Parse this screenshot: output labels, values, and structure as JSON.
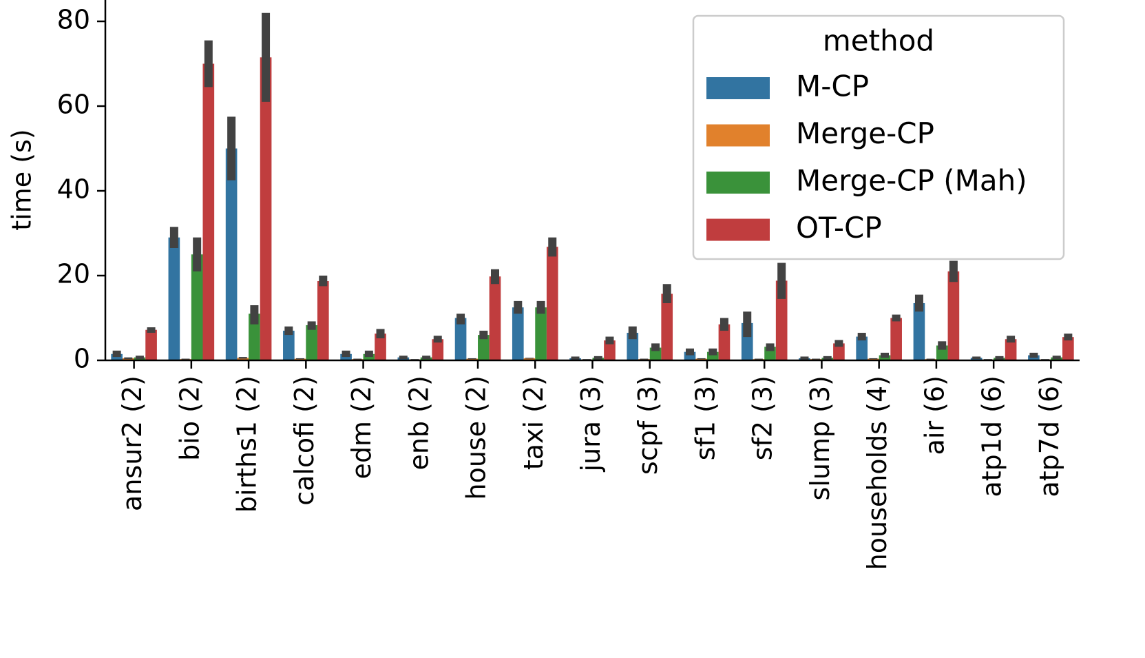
{
  "chart_data": {
    "type": "bar",
    "title": "",
    "xlabel": "",
    "ylabel": "time (s)",
    "ylim": [
      0,
      84
    ],
    "yticks": [
      "0",
      "20",
      "40",
      "60",
      "80"
    ],
    "grid": false,
    "legend": {
      "title": "method",
      "placement": "top-right"
    },
    "categories": [
      "ansur2 (2)",
      "bio (2)",
      "births1 (2)",
      "calcofi (2)",
      "edm (2)",
      "enb (2)",
      "house (2)",
      "taxi (2)",
      "jura (3)",
      "scpf (3)",
      "sf1 (3)",
      "sf2 (3)",
      "slump (3)",
      "households (4)",
      "air (6)",
      "atp1d (6)",
      "atp7d (6)"
    ],
    "series": [
      {
        "name": "M-CP",
        "color": "#3274a1",
        "values": [
          1.5,
          29.0,
          50.0,
          7.0,
          1.5,
          0.7,
          10.0,
          12.5,
          0.5,
          6.5,
          2.0,
          8.8,
          0.5,
          5.6,
          13.5,
          0.6,
          1.2
        ],
        "ci_low": [
          0.8,
          26.5,
          42.5,
          6.0,
          0.8,
          0.3,
          8.5,
          11.0,
          0.2,
          5.0,
          1.2,
          5.5,
          0.2,
          4.7,
          11.5,
          0.3,
          0.6
        ],
        "ci_high": [
          2.3,
          31.5,
          57.5,
          8.0,
          2.3,
          1.1,
          11.0,
          14.0,
          0.9,
          8.0,
          2.8,
          11.5,
          0.9,
          6.5,
          15.5,
          0.9,
          1.8
        ]
      },
      {
        "name": "Merge-CP",
        "color": "#e1812c",
        "values": [
          0.5,
          0.3,
          0.6,
          0.4,
          0.3,
          0.2,
          0.4,
          0.5,
          0.2,
          0.3,
          0.4,
          0.3,
          0.3,
          0.4,
          0.3,
          0.2,
          0.2
        ],
        "ci_low": [
          0.3,
          0.2,
          0.4,
          0.3,
          0.2,
          0.1,
          0.3,
          0.4,
          0.1,
          0.2,
          0.3,
          0.2,
          0.2,
          0.3,
          0.2,
          0.1,
          0.1
        ],
        "ci_high": [
          0.7,
          0.4,
          0.8,
          0.5,
          0.4,
          0.3,
          0.5,
          0.6,
          0.3,
          0.4,
          0.5,
          0.4,
          0.4,
          0.5,
          0.4,
          0.3,
          0.3
        ]
      },
      {
        "name": "Merge-CP (Mah)",
        "color": "#3a923a",
        "values": [
          0.7,
          25.0,
          11.0,
          8.3,
          1.5,
          0.7,
          6.0,
          12.5,
          0.6,
          3.0,
          2.0,
          3.2,
          0.6,
          1.2,
          3.5,
          0.6,
          0.7
        ],
        "ci_low": [
          0.3,
          21.0,
          8.5,
          7.2,
          0.8,
          0.3,
          5.0,
          11.0,
          0.2,
          2.2,
          1.2,
          2.2,
          0.2,
          0.6,
          2.5,
          0.2,
          0.3
        ],
        "ci_high": [
          1.1,
          29.0,
          13.0,
          9.2,
          2.3,
          1.1,
          7.0,
          14.0,
          1.0,
          4.0,
          2.8,
          4.0,
          1.0,
          1.8,
          4.5,
          1.0,
          1.1
        ]
      },
      {
        "name": "OT-CP",
        "color": "#c03d3e",
        "values": [
          7.2,
          70.0,
          71.5,
          18.7,
          6.3,
          5.0,
          19.8,
          26.8,
          4.7,
          15.7,
          8.5,
          18.8,
          4.0,
          10.0,
          21.0,
          5.0,
          5.5
        ],
        "ci_low": [
          6.5,
          64.5,
          61.0,
          17.5,
          5.2,
          4.2,
          18.0,
          24.5,
          3.8,
          13.5,
          7.0,
          14.5,
          3.2,
          9.2,
          18.5,
          4.2,
          4.7
        ],
        "ci_high": [
          7.8,
          75.5,
          82.0,
          20.0,
          7.4,
          5.8,
          21.5,
          29.0,
          5.6,
          18.0,
          10.0,
          23.0,
          4.8,
          10.8,
          23.5,
          5.8,
          6.3
        ]
      }
    ]
  }
}
